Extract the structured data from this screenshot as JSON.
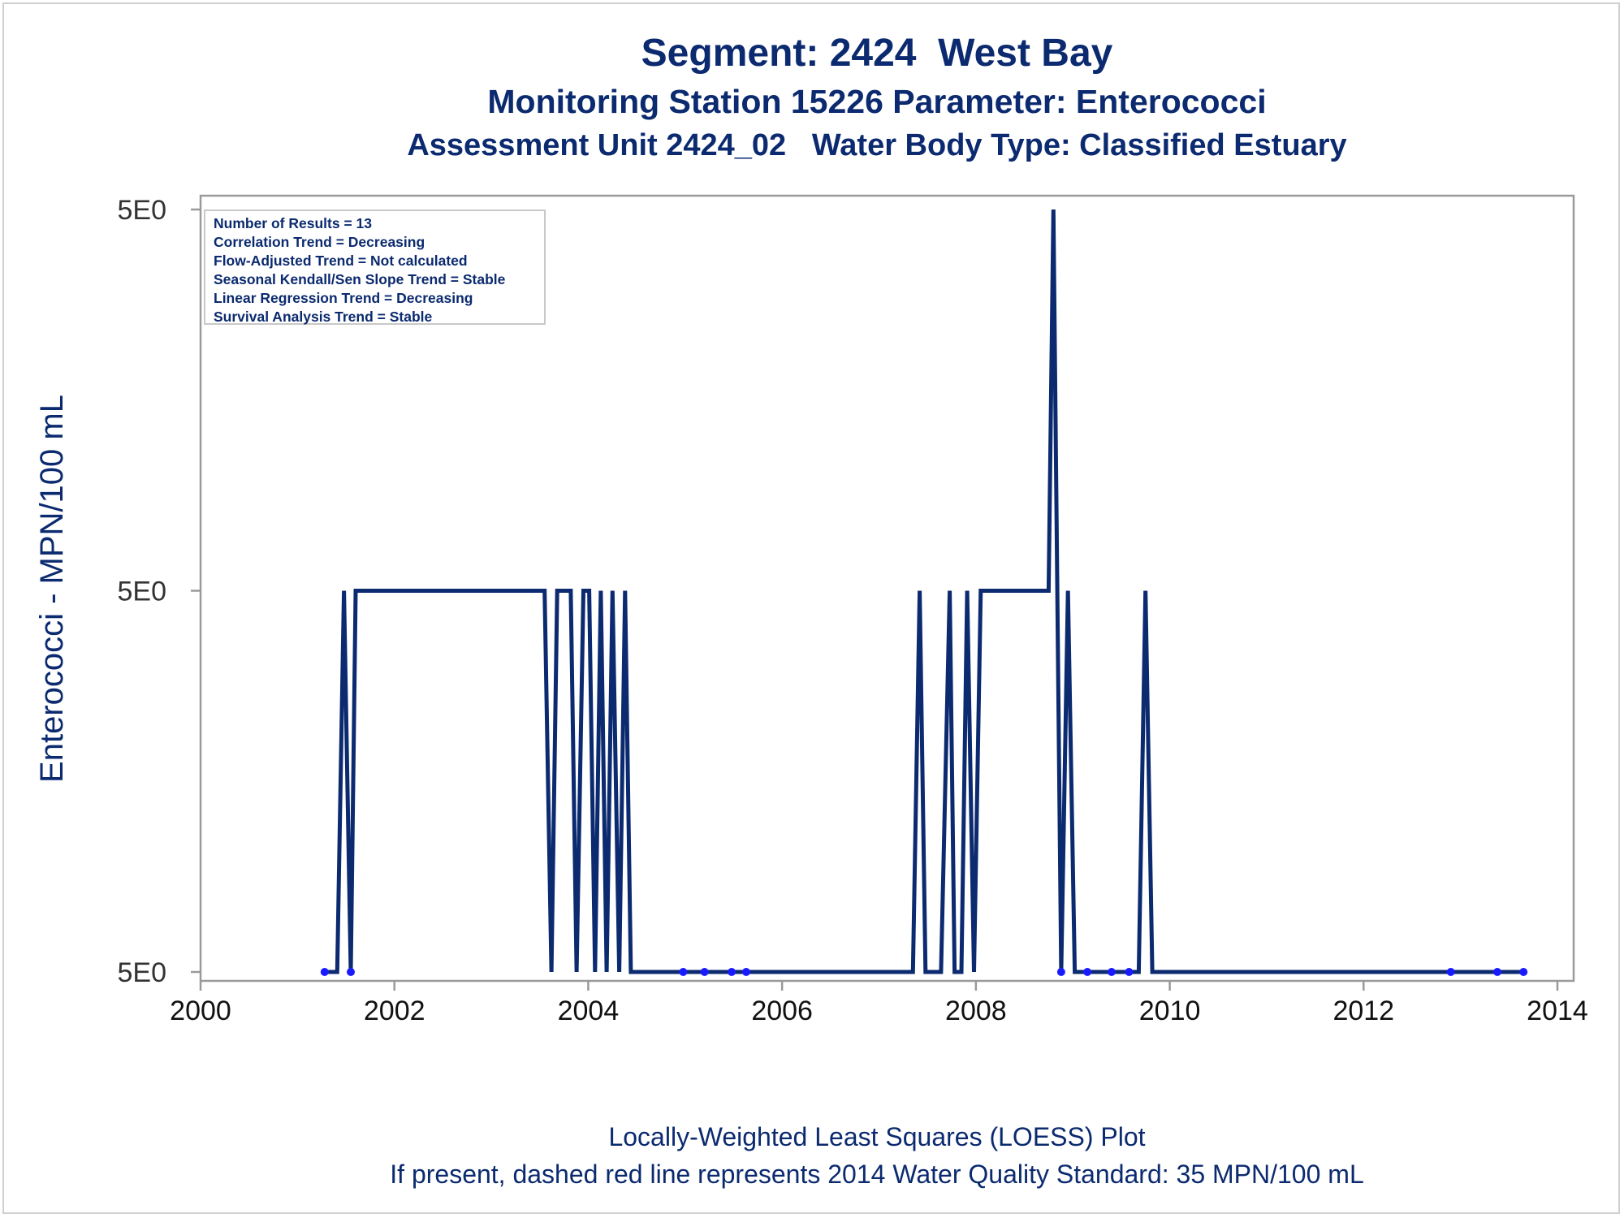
{
  "titles": {
    "line1": "Segment: 2424  West Bay",
    "line2": "Monitoring Station 15226 Parameter: Enterococci",
    "line3": "Assessment Unit 2424_02   Water Body Type: Classified Estuary"
  },
  "footnotes": {
    "line1": "Locally-Weighted Least Squares (LOESS) Plot",
    "line2": "If present, dashed red line represents 2014 Water Quality Standard: 35 MPN/100 mL"
  },
  "stats_box": [
    "Number of Results = 13",
    "Correlation Trend = Decreasing",
    "Flow-Adjusted Trend = Not calculated",
    "Seasonal Kendall/Sen Slope Trend = Stable",
    "Linear Regression Trend = Decreasing",
    "Survival Analysis Trend = Stable"
  ],
  "colors": {
    "line": "#0b2a6f",
    "points": "#1a1aff",
    "text": "#0b2a6f",
    "axis": "#9a9a9a"
  },
  "chart_data": {
    "type": "line",
    "ylabel": "Enterococci - MPN/100 mL",
    "xlabel": "",
    "x_ticks": [
      "2000",
      "2002",
      "2004",
      "2006",
      "2008",
      "2010",
      "2012",
      "2014"
    ],
    "xlim": [
      2000,
      2014
    ],
    "y_ticks": [
      {
        "value": 0,
        "label": "5E0"
      },
      {
        "value": 1,
        "label": "5E0"
      },
      {
        "value": 2,
        "label": "5E0"
      }
    ],
    "ylim": [
      0,
      2
    ],
    "series": [
      {
        "name": "",
        "x": [
          2001.28,
          2001.41,
          2001.48,
          2001.55,
          2001.6,
          2003.55,
          2003.62,
          2003.68,
          2003.82,
          2003.88,
          2003.95,
          2004.01,
          2004.07,
          2004.13,
          2004.19,
          2004.25,
          2004.32,
          2004.38,
          2004.44,
          2004.5,
          2004.98,
          2005.2,
          2005.48,
          2005.63,
          2007.35,
          2007.42,
          2007.48,
          2007.64,
          2007.73,
          2007.78,
          2007.85,
          2007.91,
          2007.98,
          2008.05,
          2008.75,
          2008.8,
          2008.88,
          2008.95,
          2009.02,
          2009.15,
          2009.4,
          2009.58,
          2009.68,
          2009.75,
          2009.82,
          2012.9,
          2013.38,
          2013.65
        ],
        "y": [
          0,
          0,
          1,
          0,
          1,
          1,
          0,
          1,
          1,
          0,
          1,
          1,
          0,
          1,
          0,
          1,
          0,
          1,
          0,
          0,
          0,
          0,
          0,
          0,
          0,
          1,
          0,
          0,
          1,
          0,
          0,
          1,
          0,
          1,
          1,
          2,
          0,
          1,
          0,
          0,
          0,
          0,
          0,
          1,
          0,
          0,
          0,
          0
        ]
      }
    ],
    "observations": {
      "x": [
        2001.28,
        2001.55,
        2004.98,
        2005.2,
        2005.48,
        2005.63,
        2008.88,
        2009.15,
        2009.4,
        2009.58,
        2012.9,
        2013.38,
        2013.65
      ],
      "y": [
        0,
        0,
        0,
        0,
        0,
        0,
        0,
        0,
        0,
        0,
        0,
        0,
        0
      ]
    },
    "grid": false
  }
}
